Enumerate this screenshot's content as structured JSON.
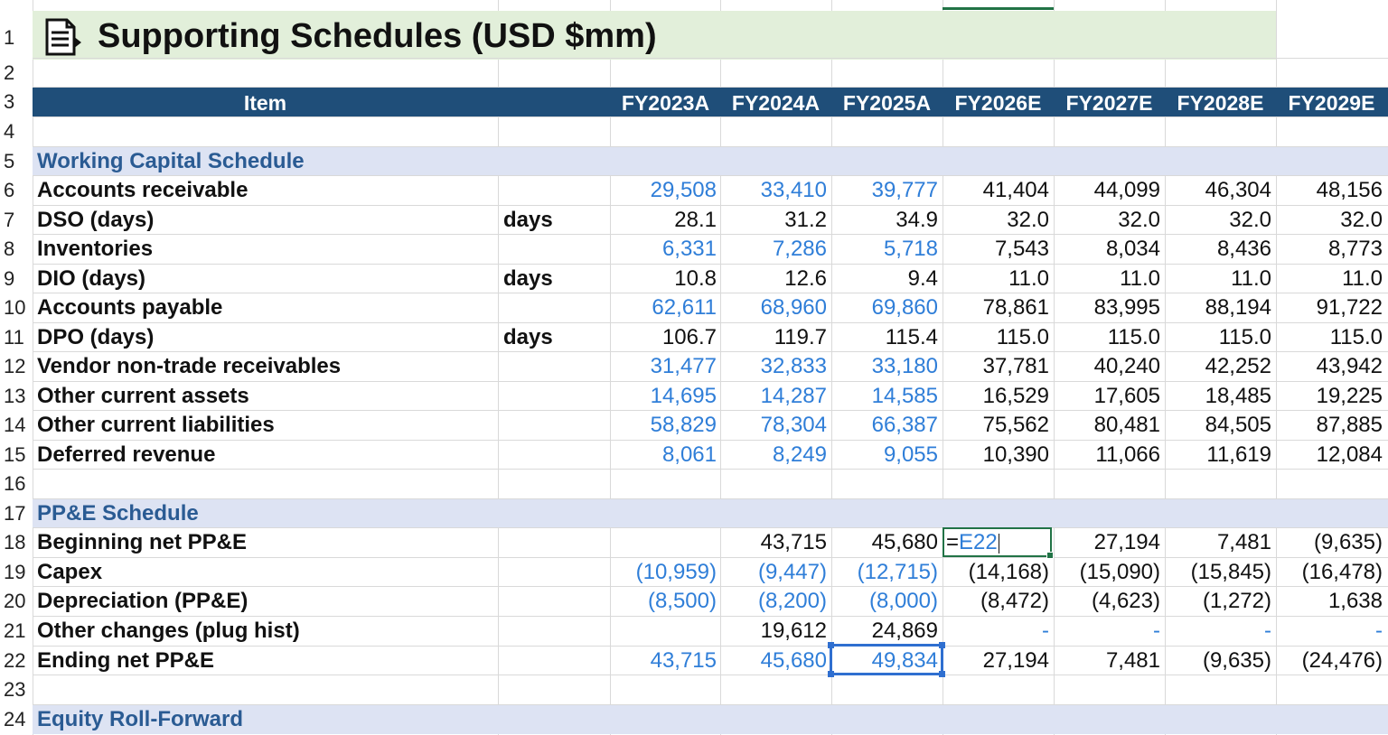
{
  "title": "Supporting Schedules (USD $mm)",
  "row_numbers": [
    "1",
    "2",
    "3",
    "4",
    "5",
    "6",
    "7",
    "8",
    "9",
    "10",
    "11",
    "12",
    "13",
    "14",
    "15",
    "16",
    "17",
    "18",
    "19",
    "20",
    "21",
    "22",
    "23",
    "24"
  ],
  "header": {
    "item": "Item",
    "years": [
      "FY2023A",
      "FY2024A",
      "FY2025A",
      "FY2026E",
      "FY2027E",
      "FY2028E",
      "FY2029E"
    ]
  },
  "sections": {
    "working_capital": "Working Capital Schedule",
    "ppe": "PP&E Schedule",
    "equity": "Equity Roll-Forward"
  },
  "rows": [
    {
      "label": "Accounts receivable",
      "unit": "",
      "values": [
        "29,508",
        "33,410",
        "39,777",
        "41,404",
        "44,099",
        "46,304",
        "48,156"
      ]
    },
    {
      "label": "DSO (days)",
      "unit": "days",
      "values": [
        "28.1",
        "31.2",
        "34.9",
        "32.0",
        "32.0",
        "32.0",
        "32.0"
      ]
    },
    {
      "label": "Inventories",
      "unit": "",
      "values": [
        "6,331",
        "7,286",
        "5,718",
        "7,543",
        "8,034",
        "8,436",
        "8,773"
      ]
    },
    {
      "label": "DIO (days)",
      "unit": "days",
      "values": [
        "10.8",
        "12.6",
        "9.4",
        "11.0",
        "11.0",
        "11.0",
        "11.0"
      ]
    },
    {
      "label": "Accounts payable",
      "unit": "",
      "values": [
        "62,611",
        "68,960",
        "69,860",
        "78,861",
        "83,995",
        "88,194",
        "91,722"
      ]
    },
    {
      "label": "DPO (days)",
      "unit": "days",
      "values": [
        "106.7",
        "119.7",
        "115.4",
        "115.0",
        "115.0",
        "115.0",
        "115.0"
      ]
    },
    {
      "label": "Vendor non-trade receivables",
      "unit": "",
      "values": [
        "31,477",
        "32,833",
        "33,180",
        "37,781",
        "40,240",
        "42,252",
        "43,942"
      ]
    },
    {
      "label": "Other current assets",
      "unit": "",
      "values": [
        "14,695",
        "14,287",
        "14,585",
        "16,529",
        "17,605",
        "18,485",
        "19,225"
      ]
    },
    {
      "label": "Other current liabilities",
      "unit": "",
      "values": [
        "58,829",
        "78,304",
        "66,387",
        "75,562",
        "80,481",
        "84,505",
        "87,885"
      ]
    },
    {
      "label": "Deferred revenue",
      "unit": "",
      "values": [
        "8,061",
        "8,249",
        "9,055",
        "10,390",
        "11,066",
        "11,619",
        "12,084"
      ]
    },
    {
      "label": "Beginning net PP&E",
      "unit": "",
      "values": [
        "",
        "43,715",
        "45,680",
        "",
        "27,194",
        "7,481",
        "(9,635)"
      ]
    },
    {
      "label": "Capex",
      "unit": "",
      "values": [
        "(10,959)",
        "(9,447)",
        "(12,715)",
        "(14,168)",
        "(15,090)",
        "(15,845)",
        "(16,478)"
      ]
    },
    {
      "label": "Depreciation (PP&E)",
      "unit": "",
      "values": [
        "(8,500)",
        "(8,200)",
        "(8,000)",
        "(8,472)",
        "(4,623)",
        "(1,272)",
        "1,638"
      ]
    },
    {
      "label": "Other changes (plug hist)",
      "unit": "",
      "values": [
        "",
        "19,612",
        "24,869",
        "-",
        "-",
        "-",
        "-"
      ]
    },
    {
      "label": "Ending net PP&E",
      "unit": "",
      "values": [
        "43,715",
        "45,680",
        "49,834",
        "27,194",
        "7,481",
        "(9,635)",
        "(24,476)"
      ]
    }
  ],
  "active_cell": {
    "prefix": "=",
    "ref": "E22"
  },
  "colors": {
    "header": "#1f4e79",
    "title_band": "#e2efda",
    "section_band": "#dde3f3",
    "input_blue": "#2f7ed8",
    "section_text": "#2a5b93",
    "active": "#217346"
  }
}
